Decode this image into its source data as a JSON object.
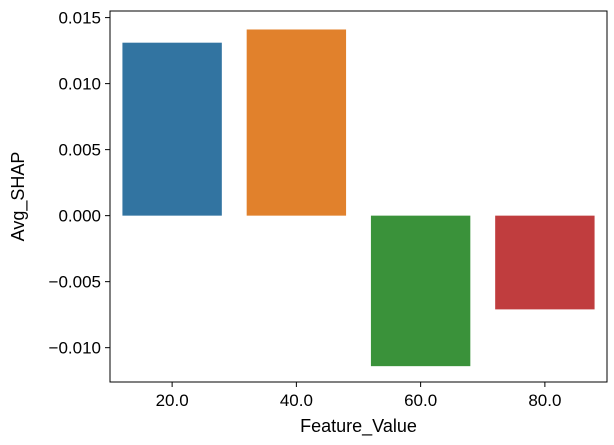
{
  "chart_data": {
    "type": "bar",
    "categories": [
      "20.0",
      "40.0",
      "60.0",
      "80.0"
    ],
    "values": [
      0.0131,
      0.0141,
      -0.0114,
      -0.0071
    ],
    "colors": [
      "#3274a1",
      "#e1812c",
      "#3a923a",
      "#c03d3e"
    ],
    "xlabel": "Feature_Value",
    "ylabel": "Avg_SHAP",
    "ylim": [
      -0.0126,
      0.0155
    ],
    "yticks": [
      {
        "value": 0.015,
        "label": "0.015"
      },
      {
        "value": 0.01,
        "label": "0.010"
      },
      {
        "value": 0.005,
        "label": "0.005"
      },
      {
        "value": 0.0,
        "label": "0.000"
      },
      {
        "value": -0.005,
        "label": "−0.005"
      },
      {
        "value": -0.01,
        "label": "−0.010"
      }
    ],
    "grid": false,
    "legend": "none"
  }
}
